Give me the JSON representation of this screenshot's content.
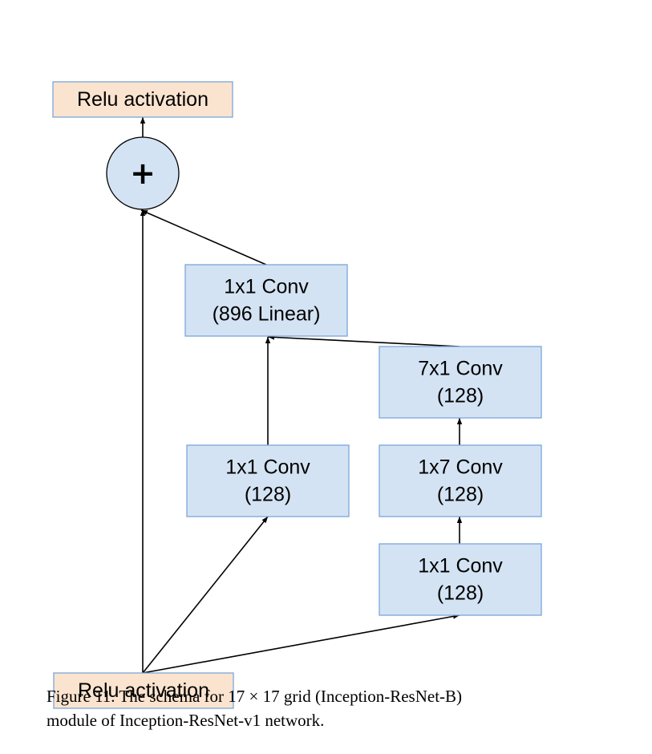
{
  "diagram": {
    "colors": {
      "relu_fill": "#fbe4cf",
      "relu_stroke": "#7aa6db",
      "conv_fill": "#d4e3f3",
      "conv_stroke": "#7aa6db",
      "sum_fill": "#d4e3f3",
      "sum_stroke": "#000000",
      "edge": "#000000"
    },
    "nodes": {
      "relu_top": {
        "label": [
          "Relu activation"
        ]
      },
      "sum": {
        "label": [
          "+"
        ]
      },
      "conv_linear": {
        "label": [
          "1x1 Conv",
          "(896 Linear)"
        ]
      },
      "conv_7x1": {
        "label": [
          "7x1 Conv",
          "(128)"
        ]
      },
      "conv_1x1_left": {
        "label": [
          "1x1 Conv",
          "(128)"
        ]
      },
      "conv_1x7": {
        "label": [
          "1x7 Conv",
          "(128)"
        ]
      },
      "conv_1x1_right": {
        "label": [
          "1x1 Conv",
          "(128)"
        ]
      },
      "relu_bottom": {
        "label": [
          "Relu activation"
        ]
      }
    },
    "edges": [
      {
        "from": "relu_bottom",
        "to": "sum"
      },
      {
        "from": "relu_bottom",
        "to": "conv_1x1_left"
      },
      {
        "from": "relu_bottom",
        "to": "conv_1x1_right"
      },
      {
        "from": "conv_1x1_right",
        "to": "conv_1x7"
      },
      {
        "from": "conv_1x7",
        "to": "conv_7x1"
      },
      {
        "from": "conv_7x1",
        "to": "conv_linear"
      },
      {
        "from": "conv_1x1_left",
        "to": "conv_linear"
      },
      {
        "from": "conv_linear",
        "to": "sum"
      },
      {
        "from": "sum",
        "to": "relu_top"
      }
    ]
  },
  "caption": {
    "line1": "Figure 11. The schema for 17 × 17 grid (Inception-ResNet-B)",
    "line2": "module of Inception-ResNet-v1 network."
  }
}
